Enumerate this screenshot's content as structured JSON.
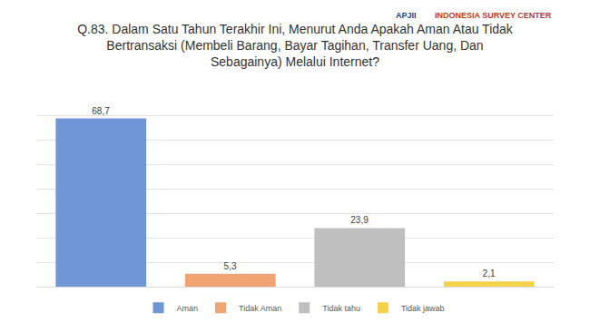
{
  "chart_data": {
    "type": "bar",
    "title": "Q.83. Dalam Satu Tahun Terakhir Ini, Menurut Anda Apakah Aman Atau Tidak Bertransaksi (Membeli Barang, Bayar Tagihan, Transfer Uang, Dan Sebagainya) Melalui Internet?",
    "categories": [
      "Aman",
      "Tidak Aman",
      "Tidak tahu",
      "Tidak jawab"
    ],
    "values": [
      68.7,
      5.3,
      23.9,
      2.1
    ],
    "value_labels": [
      "68,7",
      "5,3",
      "23,9",
      "2,1"
    ],
    "colors": [
      "#7096d8",
      "#f0a474",
      "#bfbfbf",
      "#f4d24a"
    ],
    "ylim": [
      0,
      80
    ],
    "yticks": [
      0,
      10,
      20,
      30,
      40,
      50,
      60,
      70,
      80
    ],
    "grid": true,
    "data_labels": true,
    "tick_labels": false,
    "legend": "bottom"
  },
  "logos": [
    "APJII",
    "INDONESIA SURVEY CENTER"
  ]
}
